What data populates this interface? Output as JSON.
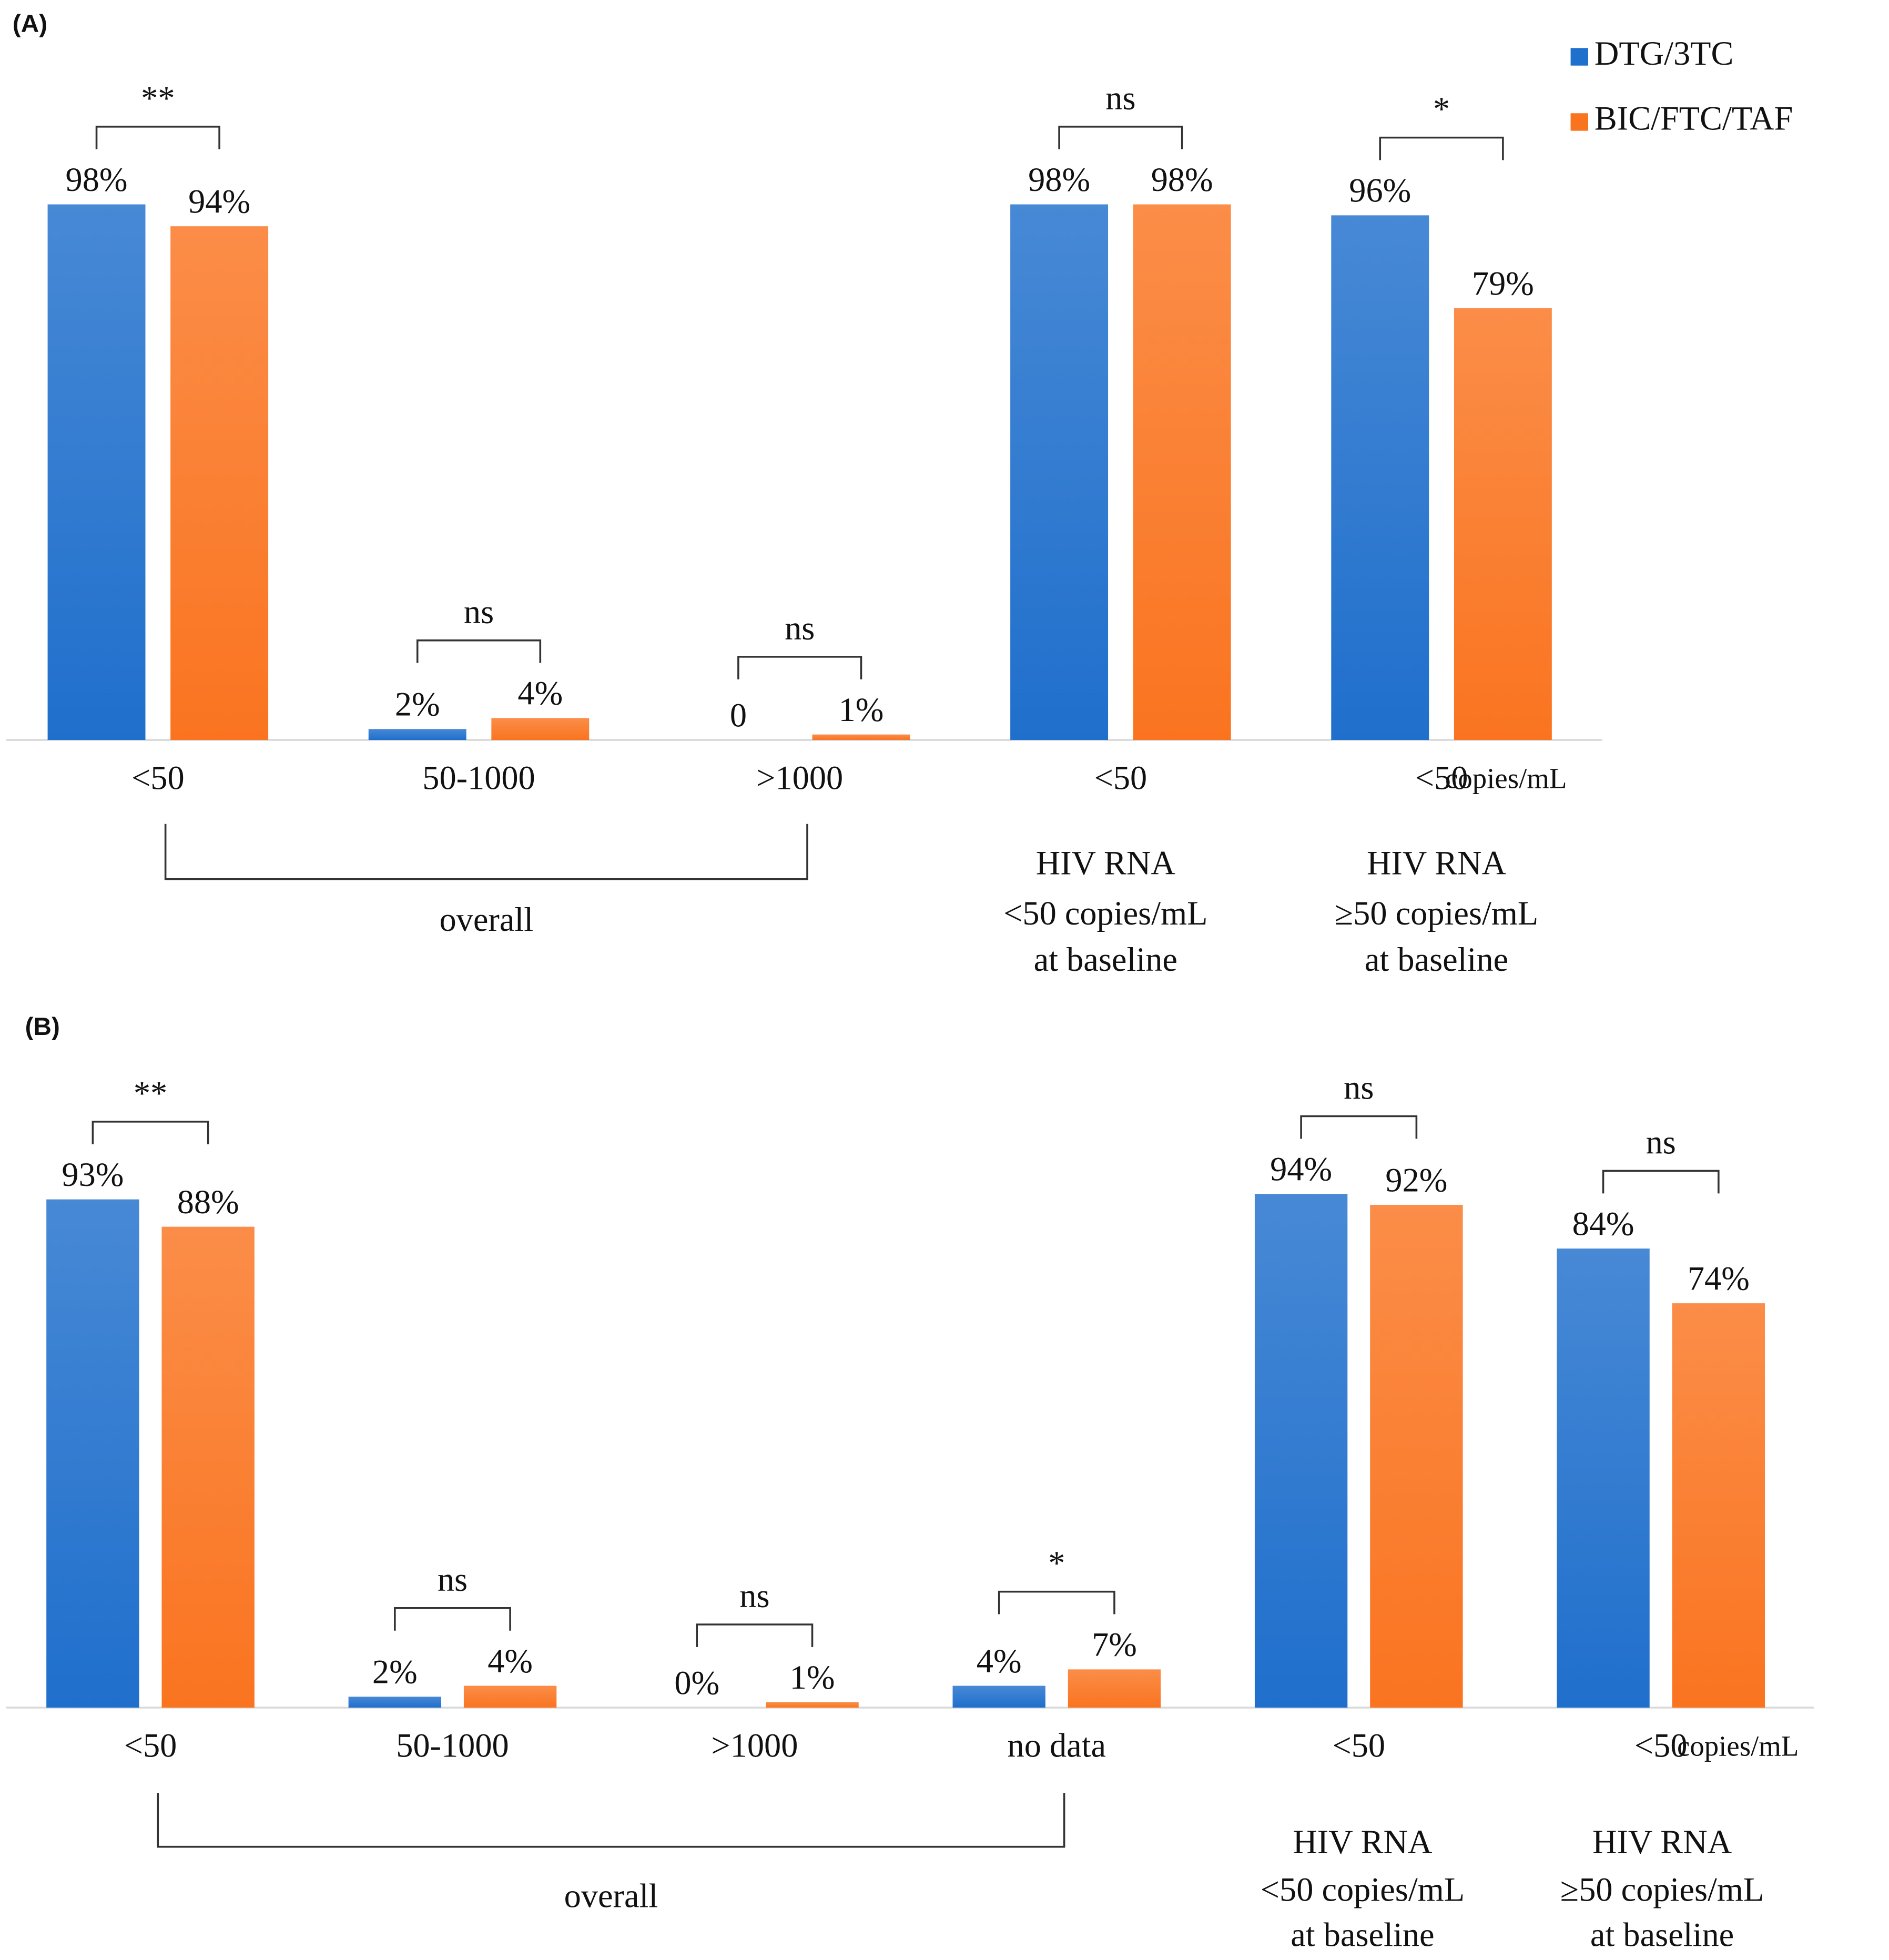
{
  "chart_data": [
    {
      "type": "bar",
      "panel_label": "(A)",
      "categories": [
        "<50",
        "50-1000",
        ">1000",
        "<50",
        "<50"
      ],
      "unit_label": "copies/mL",
      "legend": true,
      "series": [
        {
          "name": "DTG/3TC",
          "color": "#1f6fcc",
          "values": [
            98,
            2,
            0,
            98,
            96
          ],
          "value_labels": [
            "98%",
            "2%",
            "0",
            "98%",
            "96%"
          ]
        },
        {
          "name": "BIC/FTC/TAF",
          "color": "#fa7420",
          "values": [
            94,
            4,
            1,
            98,
            79
          ],
          "value_labels": [
            "94%",
            "4%",
            "1%",
            "98%",
            "79%"
          ]
        }
      ],
      "significance": [
        "**",
        "ns",
        "ns",
        "ns",
        "*"
      ],
      "groups": [
        [
          "overall"
        ],
        [
          "HIV RNA",
          "<50 copies/mL",
          "at baseline"
        ],
        [
          "HIV RNA",
          "≥50 copies/mL",
          "at baseline"
        ]
      ]
    },
    {
      "type": "bar",
      "panel_label": "(B)",
      "categories": [
        "<50",
        "50-1000",
        ">1000",
        "no data",
        "<50",
        "<50"
      ],
      "unit_label": "copies/mL",
      "legend": false,
      "series": [
        {
          "color": "#1f6fcc",
          "values": [
            93,
            2,
            0,
            4,
            94,
            84
          ],
          "value_labels": [
            "93%",
            "2%",
            "0%",
            "4%",
            "94%",
            "84%"
          ]
        },
        {
          "color": "#fa7420",
          "values": [
            88,
            4,
            1,
            7,
            92,
            74
          ],
          "value_labels": [
            "88%",
            "4%",
            "1%",
            "7%",
            "92%",
            "74%"
          ]
        }
      ],
      "significance": [
        "**",
        "ns",
        "ns",
        "*",
        "ns",
        "ns"
      ],
      "groups": [
        [
          "overall"
        ],
        [
          "HIV RNA",
          "<50 copies/mL",
          "at baseline"
        ],
        [
          "HIV RNA",
          "≥50 copies/mL",
          "at baseline"
        ]
      ]
    }
  ]
}
